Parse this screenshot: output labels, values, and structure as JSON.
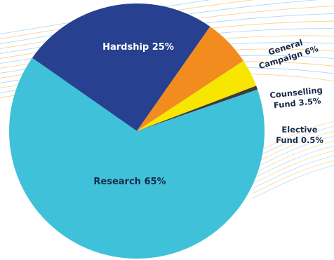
{
  "chart_data": {
    "type": "pie",
    "slices": [
      {
        "label": "Hardship 25%",
        "name": "Hardship",
        "value": 25,
        "color": "#27408f"
      },
      {
        "label": "General Campaign 6%",
        "name": "General Campaign",
        "value": 6,
        "color": "#f28c1f"
      },
      {
        "label": "Counselling Fund 3.5%",
        "name": "Counselling Fund",
        "value": 3.5,
        "color": "#f7e600"
      },
      {
        "label": "Elective Fund 0.5%",
        "name": "Elective Fund",
        "value": 0.5,
        "color": "#3c3c3c"
      },
      {
        "label": "Research 65%",
        "name": "Research",
        "value": 65,
        "color": "#40c1da"
      }
    ],
    "background_line_colors": [
      "#5ab5e8",
      "#f5a623"
    ]
  },
  "labels": {
    "hardship": "Hardship 25%",
    "general_line1": "General",
    "general_line2": "Campaign 6%",
    "counselling_line1": "Counselling",
    "counselling_line2": "Fund 3.5%",
    "elective_line1": "Elective",
    "elective_line2": "Fund 0.5%",
    "research": "Research 65%"
  }
}
